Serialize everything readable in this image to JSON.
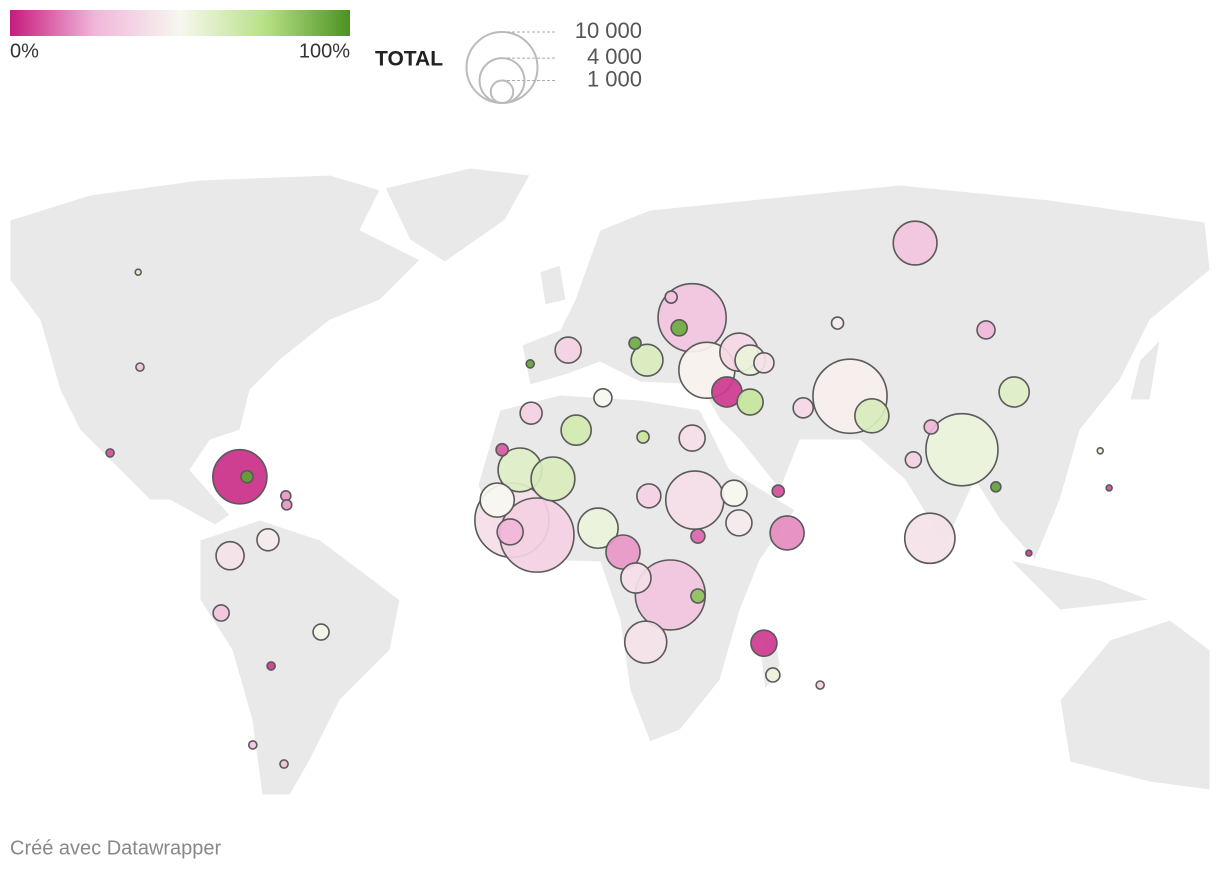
{
  "legend": {
    "color": {
      "ticks": [
        {
          "value": 0,
          "label": "0%"
        },
        {
          "value": 100,
          "label": "100%"
        }
      ],
      "scale": [
        "#c51b7d",
        "#f1b6da",
        "#f7f7f0",
        "#b8e186",
        "#4d9221"
      ]
    },
    "size": {
      "title": "TOTAL",
      "ticks": [
        {
          "value": 10000,
          "label": "10 000"
        },
        {
          "value": 4000,
          "label": "4 000"
        },
        {
          "value": 1000,
          "label": "1 000"
        }
      ]
    }
  },
  "bubbles": [
    {
      "lon": -72.0,
      "lat": 19.1,
      "total": 5800,
      "share": 3
    },
    {
      "lon": -70.4,
      "lat": 19.1,
      "total": 290,
      "share": 95
    },
    {
      "lon": 29.4,
      "lat": 49.1,
      "total": 9200,
      "share": 30
    },
    {
      "lon": 26.5,
      "lat": 47.2,
      "total": 510,
      "share": 92
    },
    {
      "lon": 32.7,
      "lat": 39.2,
      "total": 6200,
      "share": 48
    },
    {
      "lon": 37.2,
      "lat": 35.1,
      "total": 1800,
      "share": 5
    },
    {
      "lon": 64.8,
      "lat": 34.3,
      "total": 10900,
      "share": 47
    },
    {
      "lon": 69.7,
      "lat": 30.6,
      "total": 2300,
      "share": 62
    },
    {
      "lon": 89.9,
      "lat": 24.2,
      "total": 10300,
      "share": 55
    },
    {
      "lon": 79.4,
      "lat": 63.2,
      "total": 3800,
      "share": 30
    },
    {
      "lon": 82.7,
      "lat": 7.5,
      "total": 5000,
      "share": 42
    },
    {
      "lon": 101.6,
      "lat": 35.1,
      "total": 1800,
      "share": 60
    },
    {
      "lon": 95.3,
      "lat": 46.8,
      "total": 640,
      "share": 25
    },
    {
      "lon": 30.0,
      "lat": 14.7,
      "total": 6700,
      "share": 40
    },
    {
      "lon": 24.5,
      "lat": -3.2,
      "total": 9700,
      "share": 30
    },
    {
      "lon": 19.0,
      "lat": -12.1,
      "total": 3500,
      "share": 42
    },
    {
      "lon": -11.0,
      "lat": 10.9,
      "total": 10900,
      "share": 40
    },
    {
      "lon": -5.4,
      "lat": 8.1,
      "total": 10900,
      "share": 35
    },
    {
      "lon": -9.2,
      "lat": 20.4,
      "total": 3800,
      "share": 60
    },
    {
      "lon": -1.8,
      "lat": 18.7,
      "total": 3800,
      "share": 62
    },
    {
      "lon": 8.3,
      "lat": 9.4,
      "total": 3200,
      "share": 55
    },
    {
      "lon": -14.3,
      "lat": 14.7,
      "total": 2300,
      "share": 50
    },
    {
      "lon": -11.4,
      "lat": 8.7,
      "total": 1340,
      "share": 25
    },
    {
      "lon": 13.9,
      "lat": 4.9,
      "total": 2300,
      "share": 20
    },
    {
      "lon": 16.8,
      "lat": 0.0,
      "total": 1800,
      "share": 40
    },
    {
      "lon": 50.7,
      "lat": 8.5,
      "total": 2300,
      "share": 18
    },
    {
      "lon": 39.9,
      "lat": 10.4,
      "total": 1340,
      "share": 45
    },
    {
      "lon": 38.8,
      "lat": 16.0,
      "total": 1340,
      "share": 50
    },
    {
      "lon": 29.4,
      "lat": 26.4,
      "total": 1340,
      "share": 40
    },
    {
      "lon": 19.7,
      "lat": 15.5,
      "total": 1140,
      "share": 35
    },
    {
      "lon": 3.4,
      "lat": 27.9,
      "total": 1800,
      "share": 65
    },
    {
      "lon": -6.7,
      "lat": 31.1,
      "total": 960,
      "share": 35
    },
    {
      "lon": 9.4,
      "lat": 34.0,
      "total": 640,
      "share": 50
    },
    {
      "lon": 18.4,
      "lat": 26.6,
      "total": 290,
      "share": 70
    },
    {
      "lon": 1.6,
      "lat": 43.0,
      "total": 1340,
      "share": 35
    },
    {
      "lon": 19.3,
      "lat": 41.1,
      "total": 2000,
      "share": 62
    },
    {
      "lon": 39.9,
      "lat": 42.6,
      "total": 2900,
      "share": 38
    },
    {
      "lon": 42.4,
      "lat": 41.1,
      "total": 1800,
      "share": 55
    },
    {
      "lon": 45.5,
      "lat": 40.6,
      "total": 800,
      "share": 42
    },
    {
      "lon": 42.4,
      "lat": 33.2,
      "total": 1340,
      "share": 70
    },
    {
      "lon": 54.3,
      "lat": 32.1,
      "total": 800,
      "share": 38
    },
    {
      "lon": 45.5,
      "lat": -12.3,
      "total": 1340,
      "share": 5
    },
    {
      "lon": 47.5,
      "lat": -18.3,
      "total": 390,
      "share": 55
    },
    {
      "lon": -74.2,
      "lat": 4.2,
      "total": 1560,
      "share": 42
    },
    {
      "lon": -65.7,
      "lat": 7.2,
      "total": 960,
      "share": 45
    },
    {
      "lon": -76.2,
      "lat": -6.6,
      "total": 510,
      "share": 30
    },
    {
      "lon": -53.8,
      "lat": -10.2,
      "total": 510,
      "share": 52
    },
    {
      "lon": -61.7,
      "lat": 15.5,
      "total": 200,
      "share": 20
    },
    {
      "lon": -61.5,
      "lat": 13.8,
      "total": 200,
      "share": 20
    },
    {
      "lon": -101.1,
      "lat": 23.6,
      "total": 130,
      "share": 8
    },
    {
      "lon": -94.4,
      "lat": 39.8,
      "total": 130,
      "share": 30
    },
    {
      "lon": -94.8,
      "lat": 57.7,
      "total": 70,
      "share": 60
    },
    {
      "lon": 79.0,
      "lat": 22.3,
      "total": 510,
      "share": 35
    },
    {
      "lon": 83.0,
      "lat": 28.5,
      "total": 390,
      "share": 25
    },
    {
      "lon": 62.0,
      "lat": 48.1,
      "total": 290,
      "share": 45
    },
    {
      "lon": 104.9,
      "lat": 4.7,
      "total": 70,
      "share": 5
    },
    {
      "lon": 122.9,
      "lat": 17.0,
      "total": 70,
      "share": 8
    },
    {
      "lon": 97.5,
      "lat": 17.2,
      "total": 200,
      "share": 95
    },
    {
      "lon": 48.7,
      "lat": 16.4,
      "total": 290,
      "share": 8
    },
    {
      "lon": 30.7,
      "lat": 7.9,
      "total": 390,
      "share": 12
    },
    {
      "lon": 30.7,
      "lat": -3.4,
      "total": 390,
      "share": 85
    },
    {
      "lon": 58.1,
      "lat": -20.2,
      "total": 130,
      "share": 35
    },
    {
      "lon": -65.0,
      "lat": -16.6,
      "total": 130,
      "share": 5
    },
    {
      "lon": -69.1,
      "lat": -31.5,
      "total": 130,
      "share": 30
    },
    {
      "lon": -62.1,
      "lat": -35.1,
      "total": 130,
      "share": 30
    },
    {
      "lon": -13.2,
      "lat": 24.2,
      "total": 290,
      "share": 10
    },
    {
      "lon": -6.9,
      "lat": 40.4,
      "total": 130,
      "share": 95
    },
    {
      "lon": 16.6,
      "lat": 44.3,
      "total": 290,
      "share": 92
    },
    {
      "lon": 24.7,
      "lat": 53.0,
      "total": 290,
      "share": 30
    },
    {
      "lon": 120.9,
      "lat": 24.0,
      "total": 70,
      "share": 55
    }
  ],
  "footer": "Créé avec Datawrapper"
}
